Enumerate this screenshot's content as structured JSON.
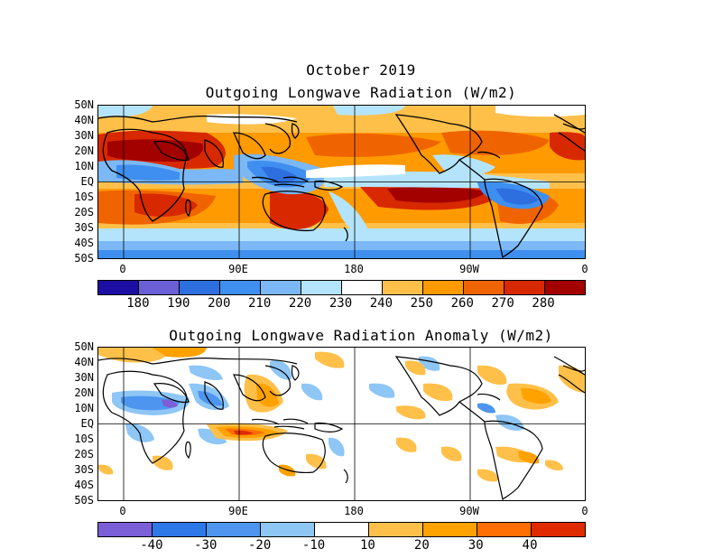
{
  "header": {
    "title_line1": "October 2019",
    "title_line2": "Outgoing Longwave Radiation (W/m2)"
  },
  "panel_bottom": {
    "title": "Outgoing Longwave Radiation Anomaly (W/m2)"
  },
  "axes": {
    "lat_ticks": [
      "50N",
      "40N",
      "30N",
      "20N",
      "10N",
      "EQ",
      "10S",
      "20S",
      "30S",
      "40S",
      "50S"
    ],
    "lon_ticks": [
      "0",
      "90E",
      "180",
      "90W",
      "0"
    ]
  },
  "colorbar_top": {
    "labels": [
      "180",
      "190",
      "200",
      "210",
      "220",
      "230",
      "240",
      "250",
      "260",
      "270",
      "280"
    ],
    "colors": [
      "#1c0da3",
      "#6b5fd6",
      "#2e6fe0",
      "#3f8ff0",
      "#7bb8f5",
      "#b4e4fb",
      "#ffffff",
      "#ffc04a",
      "#ff9a00",
      "#f06400",
      "#d82800",
      "#a30000"
    ]
  },
  "colorbar_bottom": {
    "labels": [
      "-40",
      "-30",
      "-20",
      "-10",
      "10",
      "20",
      "30",
      "40"
    ],
    "colors": [
      "#7a5fd6",
      "#2f78e8",
      "#4d95ee",
      "#8ec6f6",
      "#ffffff",
      "#ffc04a",
      "#ffa200",
      "#ff6e00",
      "#e02a00"
    ]
  },
  "map_legend": {
    "fills": {
      "very_low": "#1c0da3",
      "low": "#3f8ff0",
      "mid_low": "#b4e4fb",
      "neutral": "#ffffff",
      "mid_high": "#ffc04a",
      "high": "#ff9a00",
      "very_high": "#f06400",
      "extreme": "#d82800"
    }
  }
}
